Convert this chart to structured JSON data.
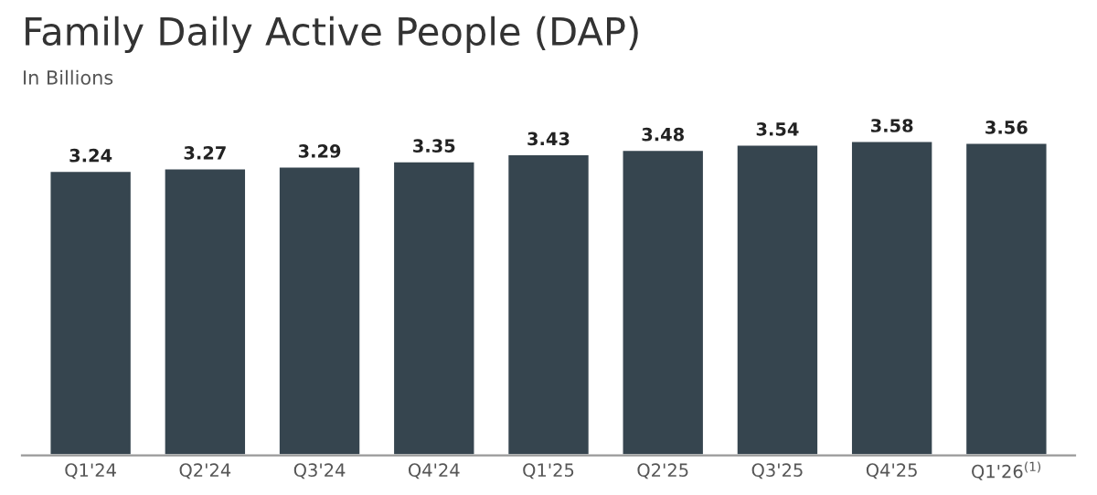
{
  "chart_data": {
    "type": "bar",
    "title": "Family Daily Active People (DAP)",
    "subtitle": "In Billions",
    "categories": [
      "Q1'24",
      "Q2'24",
      "Q3'24",
      "Q4'24",
      "Q1'25",
      "Q2'25",
      "Q3'25",
      "Q4'25",
      "Q1'26$^{(1)}$"
    ],
    "values": [
      3.24,
      3.27,
      3.29,
      3.35,
      3.43,
      3.48,
      3.54,
      3.58,
      3.56
    ],
    "color": "#36454f",
    "data_labels": true,
    "grid": false,
    "legend": false,
    "tick_labels": "x"
  }
}
